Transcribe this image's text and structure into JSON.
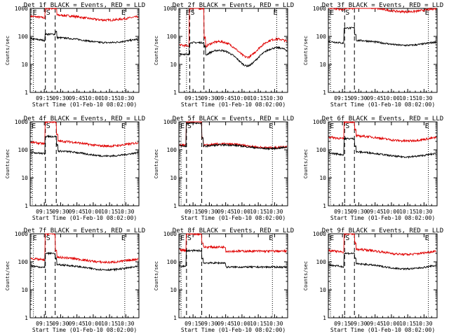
{
  "common": {
    "xlabel": "Start Time (01-Feb-10 08:02:00)",
    "ylabel": "Counts/sec",
    "x_ticks": [
      "09:15",
      "09:30",
      "09:45",
      "10:00",
      "10:15",
      "10:30"
    ],
    "x_tick_values": [
      555,
      570,
      585,
      600,
      615,
      630
    ],
    "x_range": [
      542,
      642
    ],
    "y_ticks": [
      "1",
      "10",
      "100",
      "1000"
    ],
    "y_tick_values": [
      1,
      10,
      100,
      1000
    ],
    "ylim": [
      1,
      1000
    ],
    "y_scale": "log",
    "marker_labels": {
      "E": "E",
      "S": "S"
    },
    "colors": {
      "events": "#000000",
      "lld": "#e00000"
    }
  },
  "chart_data": [
    {
      "type": "line",
      "title": "Det 1f BLACK = Events, RED = LLD",
      "e_start": 545,
      "s_line": 556,
      "dash_end": 565,
      "e_end": 629,
      "lld_level": 480,
      "ev_level": 75,
      "lld_peak": 1000,
      "ev_peak": 120,
      "variant": "flat"
    },
    {
      "type": "line",
      "title": "Det 2f BLACK = Events, RED = LLD",
      "e_start": 549,
      "s_line": 552,
      "dash_end": 565,
      "e_end": 632,
      "lld_level": 45,
      "ev_level": 22,
      "lld_peak": 1000,
      "ev_peak": 60,
      "variant": "wavy"
    },
    {
      "type": "line",
      "title": "Det 3f BLACK = Events, RED = LLD",
      "e_start": 544,
      "s_line": 557,
      "dash_end": 566,
      "e_end": 634,
      "lld_level": 950,
      "ev_level": 60,
      "lld_peak": 1000,
      "ev_peak": 200,
      "variant": "lowflat"
    },
    {
      "type": "line",
      "title": "Det 4f BLACK = Events, RED = LLD",
      "e_start": 544,
      "s_line": 556,
      "dash_end": 566,
      "e_end": 629,
      "lld_level": 170,
      "ev_level": 75,
      "lld_peak": 1000,
      "ev_peak": 300,
      "variant": "flat"
    },
    {
      "type": "line",
      "title": "Det 5f BLACK = Events, RED = LLD",
      "e_start": 544,
      "s_line": 549,
      "dash_end": 563,
      "e_end": 628,
      "lld_level": 140,
      "ev_level": 130,
      "lld_peak": 1000,
      "ev_peak": 900,
      "variant": "close"
    },
    {
      "type": "line",
      "title": "Det 6f BLACK = Events, RED = LLD",
      "e_start": 544,
      "s_line": 557,
      "dash_end": 566,
      "e_end": 634,
      "lld_level": 260,
      "ev_level": 70,
      "lld_peak": 1000,
      "ev_peak": 250,
      "variant": "flat"
    },
    {
      "type": "line",
      "title": "Det 7f BLACK = Events, RED = LLD",
      "e_start": 545,
      "s_line": 556,
      "dash_end": 565,
      "e_end": 629,
      "lld_level": 120,
      "ev_level": 65,
      "lld_peak": 1000,
      "ev_peak": 200,
      "variant": "flat"
    },
    {
      "type": "line",
      "title": "Det 8f BLACK = Events, RED = LLD",
      "e_start": 544,
      "s_line": 549,
      "dash_end": 563,
      "e_end": 628,
      "lld_level": 240,
      "ev_level": 65,
      "lld_peak": 1000,
      "ev_peak": 250,
      "variant": "step"
    },
    {
      "type": "line",
      "title": "Det 9f BLACK = Events, RED = LLD",
      "e_start": 544,
      "s_line": 557,
      "dash_end": 566,
      "e_end": 634,
      "lld_level": 230,
      "ev_level": 70,
      "lld_peak": 1000,
      "ev_peak": 200,
      "variant": "flat"
    }
  ]
}
